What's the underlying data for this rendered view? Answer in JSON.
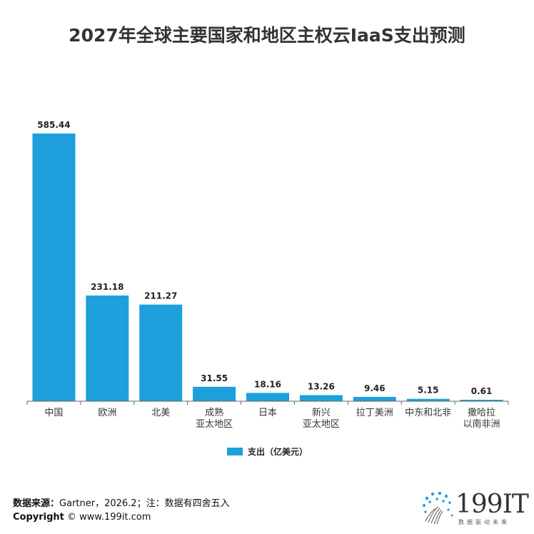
{
  "title": "2027年全球主要国家和地区主权云IaaS支出预测",
  "chart_data": {
    "type": "bar",
    "title": "2027年全球主要国家和地区主权云IaaS支出预测",
    "categories": [
      [
        "中国"
      ],
      [
        "欧洲"
      ],
      [
        "北美"
      ],
      [
        "成熟",
        "亚太地区"
      ],
      [
        "日本"
      ],
      [
        "新兴",
        "亚太地区"
      ],
      [
        "拉丁美洲"
      ],
      [
        "中东和北非"
      ],
      [
        "撒哈拉",
        "以南非洲"
      ]
    ],
    "series": [
      {
        "name": "支出（亿美元）",
        "values": [
          585.44,
          231.18,
          211.27,
          31.55,
          18.16,
          13.26,
          9.46,
          5.15,
          0.61
        ],
        "value_labels": [
          "585.44",
          "231.18",
          "211.27",
          "31.55",
          "18.16",
          "13.26",
          "9.46",
          "5.15",
          "0.61"
        ]
      }
    ],
    "ylim": [
      0,
      585.44
    ],
    "grid": false,
    "legend": "bottom-center",
    "bar_color": "#1ea0dc"
  },
  "legend": {
    "label": "支出（亿美元）"
  },
  "footer": {
    "source_label": "数据来源：",
    "source_text": "Gartner，2026.2；注：数据有四舍五入",
    "copyright_label": "Copyright",
    "copyright_text": "www.199it.com"
  },
  "logo": {
    "text": "199IT",
    "tagline": "数据驱动未来"
  }
}
